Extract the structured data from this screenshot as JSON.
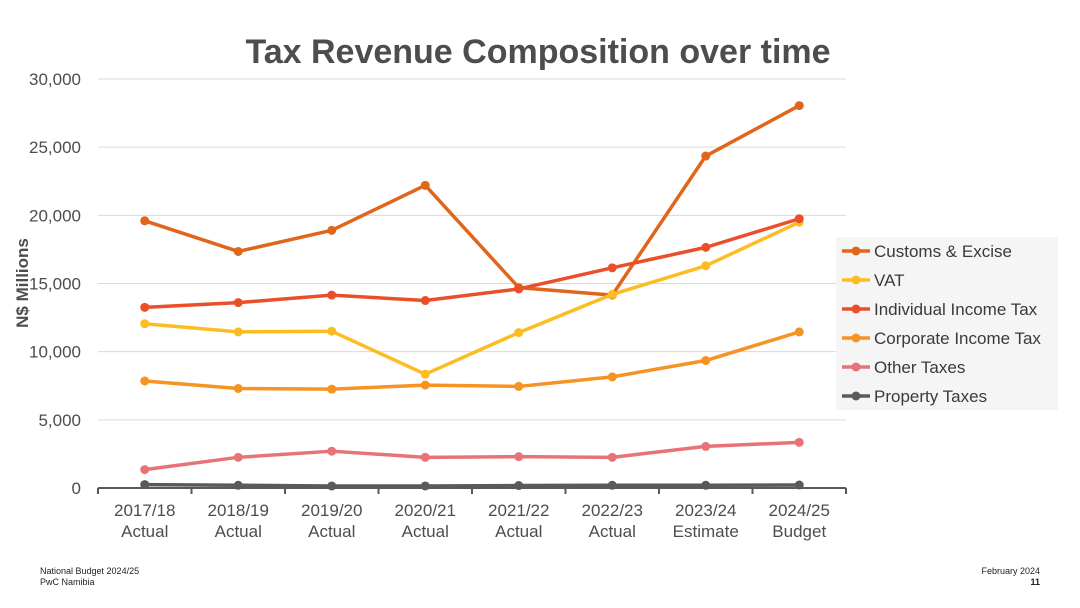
{
  "chart_data": {
    "type": "line",
    "title": "Tax Revenue Composition over time",
    "xlabel": "",
    "ylabel": "N$ Millions",
    "ylim": [
      0,
      30000
    ],
    "yticks": [
      0,
      5000,
      10000,
      15000,
      20000,
      25000,
      30000
    ],
    "ytick_labels": [
      "0",
      "5,000",
      "10,000",
      "15,000",
      "20,000",
      "25,000",
      "30,000"
    ],
    "categories": [
      [
        "2017/18",
        "Actual"
      ],
      [
        "2018/19",
        "Actual"
      ],
      [
        "2019/20",
        "Actual"
      ],
      [
        "2020/21",
        "Actual"
      ],
      [
        "2021/22",
        "Actual"
      ],
      [
        "2022/23",
        "Actual"
      ],
      [
        "2023/24",
        "Estimate"
      ],
      [
        "2024/25",
        "Budget"
      ]
    ],
    "grid": "horizontal",
    "legend_position": "right",
    "series": [
      {
        "name": "Customs & Excise",
        "color": "#e0661c",
        "values": [
          19600,
          17350,
          18900,
          22200,
          14700,
          14150,
          24350,
          28050
        ]
      },
      {
        "name": "VAT",
        "color": "#fbbd22",
        "values": [
          12050,
          11450,
          11500,
          8350,
          11400,
          14200,
          16300,
          19500
        ]
      },
      {
        "name": "Individual Income Tax",
        "color": "#ea4f2a",
        "values": [
          13250,
          13600,
          14150,
          13750,
          14600,
          16150,
          17650,
          19750
        ]
      },
      {
        "name": "Corporate Income Tax",
        "color": "#f59323",
        "values": [
          7850,
          7300,
          7250,
          7550,
          7450,
          8150,
          9350,
          11450
        ]
      },
      {
        "name": "Other Taxes",
        "color": "#e87377",
        "values": [
          1350,
          2250,
          2700,
          2250,
          2300,
          2250,
          3050,
          3350
        ]
      },
      {
        "name": "Property Taxes",
        "color": "#5a5a5a",
        "values": [
          250,
          200,
          150,
          150,
          180,
          200,
          200,
          220
        ]
      }
    ]
  },
  "footer": {
    "left_line1": "National Budget 2024/25",
    "left_line2": "PwC Namibia",
    "right_line1": "February 2024",
    "page_number": "11"
  }
}
